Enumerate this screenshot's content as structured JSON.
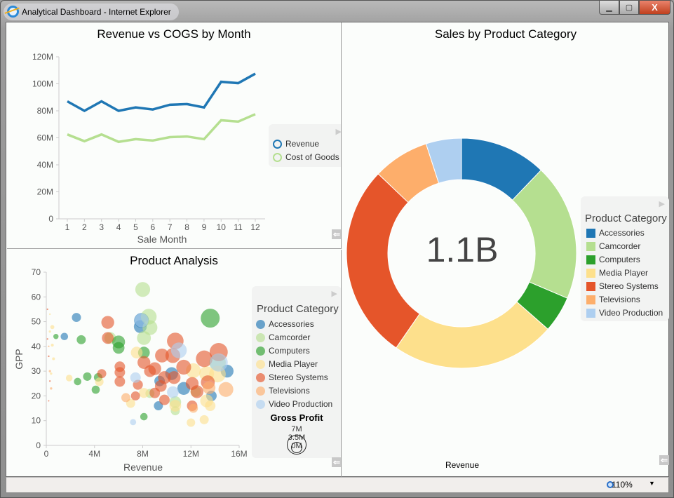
{
  "window": {
    "title": "Analytical Dashboard - Internet Explorer",
    "minimize": "▁",
    "maximize": "▢",
    "close": "X"
  },
  "status": {
    "zoom": "110%"
  },
  "colors": {
    "Accessories": "#1f77b4",
    "Camcorder": "#b5df90",
    "Computers": "#2ca02c",
    "Media Player": "#fde08c",
    "Stereo Systems": "#e5552a",
    "Televisions": "#fdae6b",
    "Video Production": "#aecff0"
  },
  "line_panel": {
    "title": "Revenue vs COGS by Month",
    "legend": [
      "Revenue",
      "Cost of Goods"
    ]
  },
  "scatter_panel": {
    "title": "Product Analysis",
    "legend_title": "Product Category",
    "size_title": "Gross Profit",
    "size_labels": [
      "7M",
      "3.5M",
      "0M"
    ],
    "legend": [
      "Accessories",
      "Camcorder",
      "Computers",
      "Media Player",
      "Stereo Systems",
      "Televisions",
      "Video Production"
    ]
  },
  "donut_panel": {
    "title": "Sales by Product Category",
    "center_value": "1.1B",
    "legend_title": "Product Category",
    "bottom_label": "Revenue",
    "legend": [
      "Accessories",
      "Camcorder",
      "Computers",
      "Media Player",
      "Stereo Systems",
      "Televisions",
      "Video Production"
    ]
  },
  "chart_data": [
    {
      "type": "line",
      "title": "Revenue vs COGS by Month",
      "xlabel": "Sale Month",
      "ylabel": "",
      "categories": [
        1,
        2,
        3,
        4,
        5,
        6,
        7,
        8,
        9,
        10,
        11,
        12
      ],
      "ylim": [
        0,
        120000000
      ],
      "yticks": [
        "0",
        "20M",
        "40M",
        "60M",
        "80M",
        "100M",
        "120M"
      ],
      "legend": "right",
      "series": [
        {
          "name": "Revenue",
          "color": "#1f77b4",
          "values": [
            87000000,
            80000000,
            87000000,
            80000000,
            82500000,
            81000000,
            84500000,
            85000000,
            82500000,
            101500000,
            100500000,
            107500000
          ]
        },
        {
          "name": "Cost of Goods",
          "color": "#b5df90",
          "values": [
            62500000,
            57500000,
            62500000,
            57000000,
            59000000,
            58000000,
            60500000,
            61000000,
            59000000,
            73000000,
            72000000,
            77500000
          ]
        }
      ]
    },
    {
      "type": "scatter",
      "title": "Product Analysis",
      "xlabel": "Revenue",
      "ylabel": "GPP",
      "xlim": [
        0,
        16000000
      ],
      "ylim": [
        0,
        70
      ],
      "xticks": [
        "0",
        "4M",
        "8M",
        "12M",
        "16M"
      ],
      "yticks": [
        "0",
        "10",
        "20",
        "30",
        "40",
        "50",
        "60",
        "70"
      ],
      "legend": "right",
      "points_fields": [
        "category",
        "revenue_M",
        "gpp",
        "gross_profit_M"
      ],
      "points": [
        [
          "Accessories",
          2.5,
          51.7,
          1.5
        ],
        [
          "Accessories",
          1.5,
          44,
          1
        ],
        [
          "Accessories",
          7.9,
          50.5,
          4
        ],
        [
          "Accessories",
          7.8,
          48,
          3
        ],
        [
          "Accessories",
          10.4,
          29,
          3
        ],
        [
          "Accessories",
          11.4,
          23,
          3
        ],
        [
          "Accessories",
          9.3,
          16,
          1.5
        ],
        [
          "Accessories",
          13.7,
          20,
          2
        ],
        [
          "Accessories",
          15,
          30,
          3
        ],
        [
          "Accessories",
          9.4,
          26,
          2
        ],
        [
          "Camcorder",
          8,
          63,
          4
        ],
        [
          "Camcorder",
          8.5,
          52,
          4.5
        ],
        [
          "Camcorder",
          8.1,
          43.4,
          3.5
        ],
        [
          "Camcorder",
          8.6,
          47.6,
          4
        ],
        [
          "Camcorder",
          14.2,
          33.5,
          5
        ],
        [
          "Camcorder",
          10.7,
          17.5,
          2.5
        ],
        [
          "Camcorder",
          10.7,
          14,
          1.5
        ],
        [
          "Camcorder",
          8.6,
          21,
          1.5
        ],
        [
          "Camcorder",
          12.4,
          21.7,
          2
        ],
        [
          "Camcorder",
          5.3,
          43.4,
          2.5
        ],
        [
          "Computers",
          13.6,
          51.4,
          6.5
        ],
        [
          "Computers",
          2.9,
          42.7,
          1.5
        ],
        [
          "Computers",
          0.8,
          44,
          0.5
        ],
        [
          "Computers",
          2.6,
          25.8,
          1
        ],
        [
          "Computers",
          3.4,
          27.8,
          1.3
        ],
        [
          "Computers",
          4.3,
          27.5,
          1.3
        ],
        [
          "Computers",
          4.1,
          22.5,
          1.2
        ],
        [
          "Computers",
          6,
          41.8,
          3
        ],
        [
          "Computers",
          6,
          39.4,
          2.5
        ],
        [
          "Computers",
          8.1,
          37.5,
          2.5
        ],
        [
          "Computers",
          8.1,
          11.6,
          1
        ],
        [
          "Media Player",
          1.9,
          27.2,
          0.8
        ],
        [
          "Media Player",
          4.4,
          25.7,
          1.3
        ],
        [
          "Media Player",
          0.5,
          47.8,
          0.3
        ],
        [
          "Media Player",
          7.5,
          37.5,
          2.5
        ],
        [
          "Media Player",
          8.1,
          21.2,
          1.8
        ],
        [
          "Media Player",
          7,
          17,
          1.5
        ],
        [
          "Media Player",
          12.2,
          30.2,
          4
        ],
        [
          "Media Player",
          13.3,
          29,
          4
        ],
        [
          "Media Player",
          14.2,
          28.8,
          5
        ],
        [
          "Media Player",
          13.3,
          18,
          3
        ],
        [
          "Media Player",
          12,
          9.2,
          1.3
        ],
        [
          "Media Player",
          13.1,
          10.4,
          1.5
        ],
        [
          "Media Player",
          13.6,
          16,
          2
        ],
        [
          "Media Player",
          10.7,
          16,
          2.5
        ],
        [
          "Stereo Systems",
          5.1,
          49.7,
          3
        ],
        [
          "Stereo Systems",
          5.1,
          43.4,
          2.5
        ],
        [
          "Stereo Systems",
          4.6,
          29,
          1.5
        ],
        [
          "Stereo Systems",
          6.1,
          31.8,
          2
        ],
        [
          "Stereo Systems",
          6.1,
          29.5,
          2
        ],
        [
          "Stereo Systems",
          6.1,
          25.8,
          2
        ],
        [
          "Stereo Systems",
          8.1,
          33.5,
          3
        ],
        [
          "Stereo Systems",
          8.6,
          30,
          2.5
        ],
        [
          "Stereo Systems",
          9,
          31,
          3
        ],
        [
          "Stereo Systems",
          9.6,
          36.3,
          3.5
        ],
        [
          "Stereo Systems",
          10.7,
          42.2,
          5
        ],
        [
          "Stereo Systems",
          10.5,
          36.3,
          4
        ],
        [
          "Stereo Systems",
          11.4,
          31.6,
          4
        ],
        [
          "Stereo Systems",
          10.6,
          27.4,
          3
        ],
        [
          "Stereo Systems",
          9.8,
          27.4,
          3
        ],
        [
          "Stereo Systems",
          9.5,
          24,
          2.5
        ],
        [
          "Stereo Systems",
          9,
          21.2,
          2
        ],
        [
          "Stereo Systems",
          9.8,
          18.4,
          2
        ],
        [
          "Stereo Systems",
          7.6,
          24.5,
          1.8
        ],
        [
          "Stereo Systems",
          7.4,
          20,
          1.5
        ],
        [
          "Stereo Systems",
          12.1,
          25,
          3
        ],
        [
          "Stereo Systems",
          12.5,
          21.7,
          3
        ],
        [
          "Stereo Systems",
          13.1,
          35,
          5
        ],
        [
          "Stereo Systems",
          14.3,
          37.7,
          6
        ],
        [
          "Stereo Systems",
          13.4,
          25.5,
          3.5
        ],
        [
          "Stereo Systems",
          12.1,
          16,
          2
        ],
        [
          "Televisions",
          6.6,
          19.3,
          1.5
        ],
        [
          "Televisions",
          14.9,
          22.6,
          4
        ],
        [
          "Televisions",
          13.5,
          23.3,
          3
        ],
        [
          "Televisions",
          12.2,
          15,
          1.5
        ],
        [
          "Televisions",
          0.3,
          30,
          0.1
        ],
        [
          "Televisions",
          0.4,
          23,
          0.1
        ],
        [
          "Televisions",
          0.2,
          40,
          0.05
        ],
        [
          "Video Production",
          7.4,
          27.4,
          2
        ],
        [
          "Video Production",
          7.2,
          9.4,
          0.7
        ],
        [
          "Video Production",
          10.5,
          21.5,
          2.5
        ],
        [
          "Video Production",
          11,
          38.4,
          4.5
        ],
        [
          "Video Production",
          14.3,
          33.5,
          6
        ],
        [
          "Video Production",
          7.9,
          50.5,
          3.5
        ],
        [
          "Stereo Systems",
          0.1,
          55,
          0.05
        ],
        [
          "Stereo Systems",
          0.2,
          36,
          0.05
        ],
        [
          "Stereo Systems",
          0.3,
          26,
          0.05
        ],
        [
          "Stereo Systems",
          0.1,
          43,
          0.05
        ],
        [
          "Media Player",
          0.6,
          35,
          0.15
        ],
        [
          "Media Player",
          0.5,
          40.5,
          0.15
        ],
        [
          "Media Player",
          0.3,
          46,
          0.1
        ],
        [
          "Media Player",
          0.4,
          29,
          0.1
        ],
        [
          "Stereo Systems",
          0.2,
          18,
          0.03
        ],
        [
          "Media Player",
          0.3,
          53,
          0.05
        ]
      ]
    },
    {
      "type": "pie",
      "donut": true,
      "title": "Sales by Product Category",
      "center_label": "1.1B",
      "legend": "right",
      "categories": [
        "Accessories",
        "Camcorder",
        "Computers",
        "Media Player",
        "Stereo Systems",
        "Televisions",
        "Video Production"
      ],
      "values": [
        134000000,
        212000000,
        56000000,
        255000000,
        303000000,
        87000000,
        55000000
      ]
    }
  ]
}
